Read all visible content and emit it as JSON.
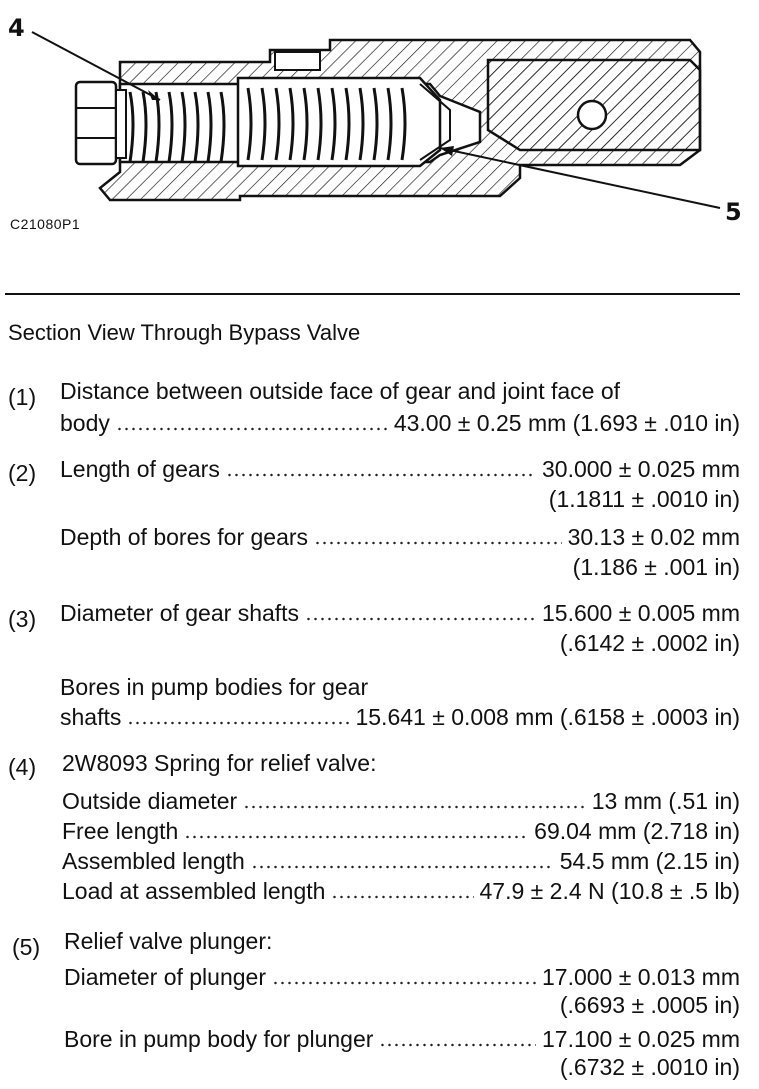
{
  "figure": {
    "callout_4": "4",
    "callout_5": "5",
    "figure_id": "C21080P1"
  },
  "section_title": "Section View Through Bypass Valve",
  "items": [
    {
      "num": "(1)",
      "lines": [
        {
          "label": "Distance between outside face of gear and joint face of"
        },
        {
          "label": "body",
          "value": "43.00 ± 0.25 mm (1.693 ± .010 in)"
        }
      ]
    },
    {
      "num": "(2)",
      "lines": [
        {
          "label": "Length of gears",
          "value": "30.000 ± 0.025 mm"
        },
        {
          "cont": "(1.1811 ± .0010 in)"
        },
        {
          "label": "Depth of bores for gears",
          "value": "30.13 ± 0.02 mm"
        },
        {
          "cont": "(1.186 ± .001 in)"
        }
      ]
    },
    {
      "num": "(3)",
      "lines": [
        {
          "label": "Diameter of gear shafts",
          "value": "15.600 ± 0.005 mm"
        },
        {
          "cont": "(.6142 ± .0002 in)"
        },
        {
          "label": "Bores in pump bodies for gear"
        },
        {
          "label": "shafts",
          "value": "15.641 ± 0.008 mm (.6158 ± .0003 in)"
        }
      ]
    },
    {
      "num": "(4)",
      "lines": [
        {
          "label": "2W8093 Spring for relief valve:"
        },
        {
          "label": "Outside diameter",
          "value": "13 mm (.51 in)"
        },
        {
          "label": "Free length",
          "value": "69.04 mm (2.718 in)"
        },
        {
          "label": "Assembled length",
          "value": "54.5 mm (2.15 in)"
        },
        {
          "label": "Load at assembled length",
          "value": "47.9 ± 2.4 N (10.8 ± .5 lb)"
        }
      ]
    },
    {
      "num": "(5)",
      "lines": [
        {
          "label": "Relief valve plunger:"
        },
        {
          "label": "Diameter of plunger",
          "value": "17.000 ± 0.013 mm"
        },
        {
          "cont": "(.6693 ± .0005 in)"
        },
        {
          "label": "Bore in pump body for plunger",
          "value": "17.100 ± 0.025 mm"
        },
        {
          "cont": "(.6732 ± .0010 in)"
        }
      ]
    }
  ]
}
